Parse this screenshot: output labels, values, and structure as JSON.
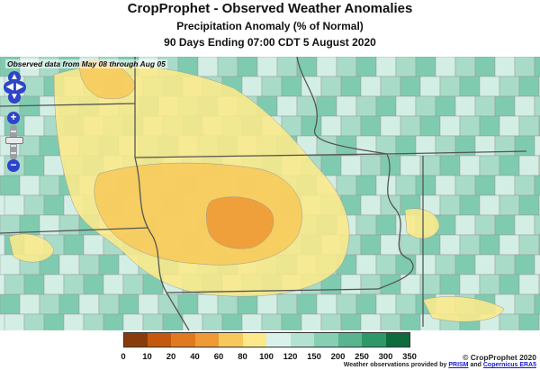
{
  "header": {
    "title": "CropProphet - Observed Weather Anomalies",
    "subtitle": "Precipitation Anomaly (% of Normal)",
    "period": "90 Days Ending 07:00 CDT 5 August 2020"
  },
  "map": {
    "observation_note": "Observed data from May 08 through Aug 05",
    "colors": {
      "background": "#d7efe9",
      "state_border": "#555555",
      "county_border": "#9a9a9a"
    }
  },
  "legend": {
    "ticks": [
      "0",
      "10",
      "20",
      "40",
      "60",
      "80",
      "100",
      "120",
      "150",
      "200",
      "250",
      "300",
      "350"
    ],
    "colors": [
      "#8a3b0c",
      "#c4580e",
      "#e07a1e",
      "#ef9a35",
      "#f7c95a",
      "#fbe98a",
      "#d9f1ea",
      "#b4e2d2",
      "#86cfb2",
      "#58b58f",
      "#2f9868",
      "#0d6b3c"
    ]
  },
  "footer": {
    "copyright": "© CropProphet 2020",
    "credit_prefix": "Weather observations provided by",
    "credit_and": "and",
    "link_prism": "PRISM",
    "link_era5": "Copernicus ERA5"
  },
  "controls": {
    "pan_up": "▲",
    "pan_down": "▼",
    "pan_left": "◀",
    "pan_right": "▶",
    "zoom_in": "+",
    "zoom_out": "−"
  }
}
